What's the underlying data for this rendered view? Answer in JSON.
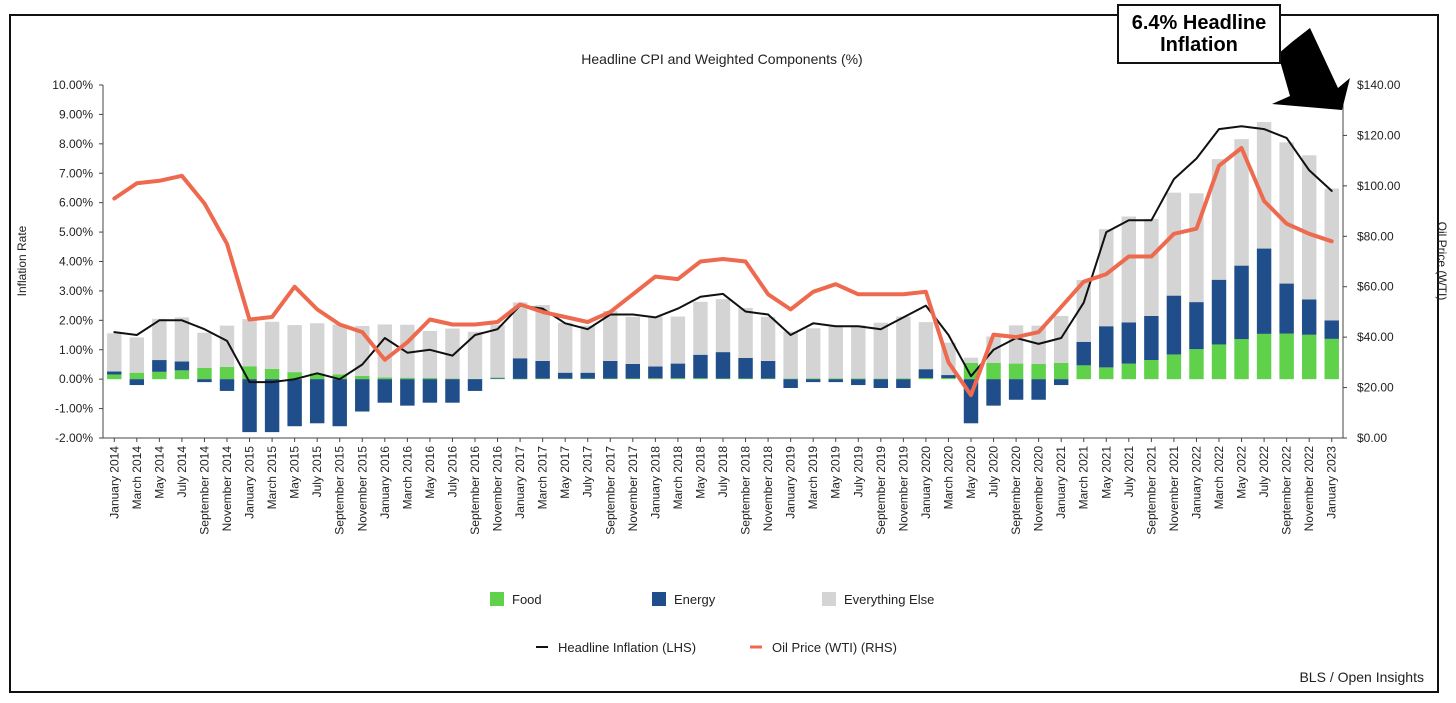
{
  "callout": {
    "text": "6.4% Headline Inflation"
  },
  "source": "BLS / Open Insights",
  "chart_data": {
    "type": "bar",
    "title": "Headline CPI and Weighted Components (%)",
    "ylabel": "Inflation Rate",
    "y2label": "Oil Price (WTI)",
    "ylim": [
      -0.02,
      0.1
    ],
    "y2lim": [
      0,
      140
    ],
    "yticks": [
      "-2.00%",
      "-1.00%",
      "0.00%",
      "1.00%",
      "2.00%",
      "3.00%",
      "4.00%",
      "5.00%",
      "6.00%",
      "7.00%",
      "8.00%",
      "9.00%",
      "10.00%"
    ],
    "y2ticks": [
      "$0.00",
      "$20.00",
      "$40.00",
      "$60.00",
      "$80.00",
      "$100.00",
      "$120.00",
      "$140.00"
    ],
    "categories": [
      "January 2014",
      "March 2014",
      "May 2014",
      "July 2014",
      "September 2014",
      "November 2014",
      "January 2015",
      "March 2015",
      "May 2015",
      "July 2015",
      "September 2015",
      "November 2015",
      "January 2016",
      "March 2016",
      "May 2016",
      "July 2016",
      "September 2016",
      "November 2016",
      "January 2017",
      "March 2017",
      "May 2017",
      "July 2017",
      "September 2017",
      "November 2017",
      "January 2018",
      "March 2018",
      "May 2018",
      "July 2018",
      "September 2018",
      "November 2018",
      "January 2019",
      "March 2019",
      "May 2019",
      "July 2019",
      "September 2019",
      "November 2019",
      "January 2020",
      "March 2020",
      "May 2020",
      "July 2020",
      "September 2020",
      "November 2020",
      "January 2021",
      "March 2021",
      "May 2021",
      "July 2021",
      "September 2021",
      "November 2021",
      "January 2022",
      "March 2022",
      "May 2022",
      "July 2022",
      "September 2022",
      "November 2022",
      "January 2023"
    ],
    "stacked": true,
    "series": [
      {
        "name": "Food",
        "kind": "bar",
        "color": "#5fd14a",
        "values": [
          0.0016,
          0.0022,
          0.0025,
          0.003,
          0.0038,
          0.0042,
          0.0044,
          0.0035,
          0.0024,
          0.002,
          0.0016,
          0.0011,
          0.0006,
          0.0005,
          0.0004,
          0.0002,
          0.0001,
          0.0002,
          0.0001,
          0.0002,
          0.0002,
          0.0002,
          0.0002,
          0.0002,
          0.0003,
          0.0003,
          0.0003,
          0.0002,
          0.0002,
          0.0002,
          0.0002,
          0.0003,
          0.0003,
          0.0003,
          0.0002,
          0.0003,
          0.0004,
          0.0004,
          0.0055,
          0.0055,
          0.0053,
          0.0052,
          0.0055,
          0.0047,
          0.004,
          0.0053,
          0.0065,
          0.0084,
          0.0102,
          0.0118,
          0.0136,
          0.0154,
          0.0155,
          0.0151,
          0.0137
        ]
      },
      {
        "name": "Energy",
        "kind": "bar",
        "color": "#1f4e8a",
        "values": [
          0.001,
          -0.002,
          0.004,
          0.003,
          -0.001,
          -0.004,
          -0.018,
          -0.018,
          -0.016,
          -0.015,
          -0.016,
          -0.011,
          -0.008,
          -0.009,
          -0.008,
          -0.008,
          -0.004,
          0.0003,
          0.007,
          0.006,
          0.002,
          0.002,
          0.006,
          0.005,
          0.004,
          0.005,
          0.008,
          0.009,
          0.007,
          0.006,
          -0.003,
          -0.001,
          -0.001,
          -0.002,
          -0.003,
          -0.003,
          0.003,
          0.001,
          -0.015,
          -0.009,
          -0.007,
          -0.007,
          -0.002,
          0.008,
          0.014,
          0.014,
          0.015,
          0.02,
          0.016,
          0.022,
          0.025,
          0.029,
          0.017,
          0.012,
          0.0063
        ]
      },
      {
        "name": "Everything Else",
        "kind": "bar",
        "color": "#d4d4d4",
        "values": [
          0.013,
          0.012,
          0.014,
          0.015,
          0.012,
          0.014,
          0.016,
          0.016,
          0.016,
          0.017,
          0.017,
          0.017,
          0.018,
          0.018,
          0.016,
          0.017,
          0.016,
          0.018,
          0.019,
          0.019,
          0.017,
          0.016,
          0.017,
          0.016,
          0.017,
          0.016,
          0.018,
          0.018,
          0.017,
          0.015,
          0.016,
          0.017,
          0.018,
          0.018,
          0.019,
          0.021,
          0.016,
          0.011,
          0.0018,
          0.009,
          0.013,
          0.013,
          0.016,
          0.021,
          0.033,
          0.036,
          0.033,
          0.035,
          0.037,
          0.041,
          0.043,
          0.043,
          0.048,
          0.049,
          0.0448
        ]
      },
      {
        "name": "Headline Inflation (LHS)",
        "kind": "line",
        "axis": "left",
        "color": "#111111",
        "values": [
          0.016,
          0.015,
          0.02,
          0.02,
          0.017,
          0.013,
          -0.001,
          -0.001,
          0.0,
          0.002,
          0.0,
          0.005,
          0.014,
          0.009,
          0.01,
          0.008,
          0.015,
          0.017,
          0.025,
          0.024,
          0.019,
          0.017,
          0.022,
          0.022,
          0.021,
          0.024,
          0.028,
          0.029,
          0.023,
          0.022,
          0.015,
          0.019,
          0.018,
          0.018,
          0.017,
          0.021,
          0.025,
          0.015,
          0.001,
          0.01,
          0.014,
          0.012,
          0.014,
          0.026,
          0.05,
          0.054,
          0.054,
          0.068,
          0.075,
          0.085,
          0.086,
          0.085,
          0.082,
          0.071,
          0.064
        ]
      },
      {
        "name": "Oil Price (WTI) (RHS)",
        "kind": "line",
        "axis": "right",
        "color": "#ee6a4f",
        "values": [
          95,
          101,
          102,
          104,
          93,
          77,
          47,
          48,
          60,
          51,
          45,
          42,
          31,
          38,
          47,
          45,
          45,
          46,
          53,
          50,
          48,
          46,
          50,
          57,
          64,
          63,
          70,
          71,
          70,
          57,
          51,
          58,
          61,
          57,
          57,
          57,
          58,
          30,
          17,
          41,
          40,
          42,
          52,
          62,
          65,
          72,
          72,
          81,
          83,
          108,
          115,
          94,
          85,
          81,
          78
        ]
      }
    ],
    "legend": [
      "Food",
      "Energy",
      "Everything Else",
      "Headline Inflation (LHS)",
      "Oil Price (WTI) (RHS)"
    ],
    "legend_position": "bottom",
    "grid": false
  }
}
